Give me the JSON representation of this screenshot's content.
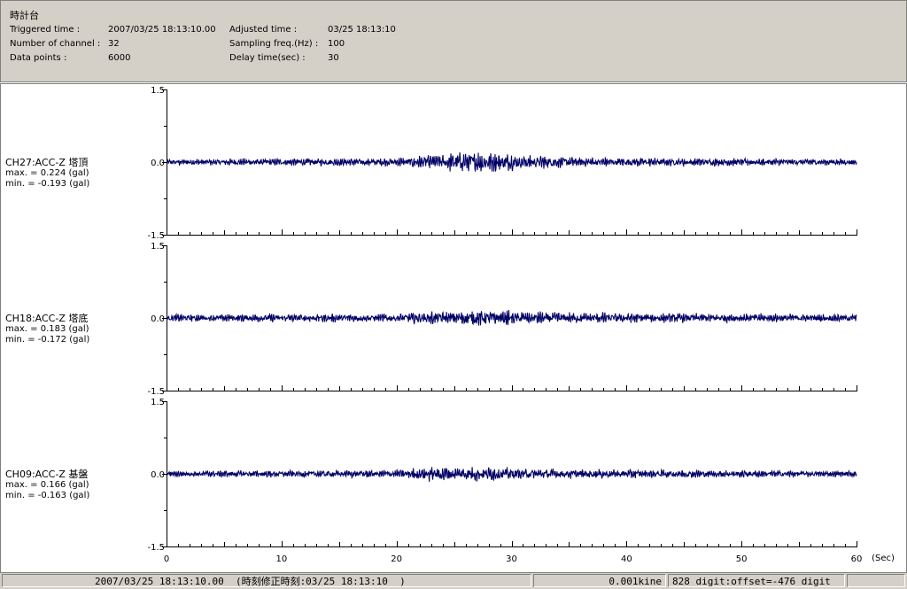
{
  "header": {
    "title": "時計台",
    "triggered_label": "Triggered time :",
    "triggered_value": "2007/03/25 18:13:10.00",
    "channels_label": "Number of channel :",
    "channels_value": "32",
    "points_label": "Data points :",
    "points_value": "6000",
    "adjusted_label": "Adjusted time :",
    "adjusted_value": "03/25 18:13:10",
    "sampling_label": "Sampling freq.(Hz) :",
    "sampling_value": "100",
    "delay_label": "Delay time(sec) :",
    "delay_value": "30"
  },
  "status": {
    "time": "2007/03/25 18:13:10.00  (時刻修正時刻:03/25 18:13:10  )",
    "units": "0.001kine",
    "digit": "828 digit:offset=-476 digit"
  },
  "colors": {
    "trace": "#000066",
    "background": "#ffffff",
    "panel": "#d4d0c8"
  },
  "chart_data": [
    {
      "type": "line",
      "channel": "CH27:ACC-Z 塔頂",
      "max_text": "max. = 0.224 (gal)",
      "min_text": "min. = -0.193 (gal)",
      "max": 0.224,
      "min": -0.193,
      "ylim": [
        -1.5,
        1.5
      ],
      "yticks": [
        "1.5",
        "0.0",
        "-1.5"
      ],
      "xlim": [
        0,
        60
      ],
      "activity": [
        [
          0,
          0.06
        ],
        [
          20,
          0.08
        ],
        [
          23,
          0.16
        ],
        [
          25,
          0.2
        ],
        [
          28,
          0.22
        ],
        [
          30,
          0.16
        ],
        [
          35,
          0.1
        ],
        [
          45,
          0.08
        ],
        [
          60,
          0.06
        ]
      ]
    },
    {
      "type": "line",
      "channel": "CH18:ACC-Z 塔底",
      "max_text": "max. = 0.183 (gal)",
      "min_text": "min. = -0.172 (gal)",
      "max": 0.183,
      "min": -0.172,
      "ylim": [
        -1.5,
        1.5
      ],
      "yticks": [
        "1.5",
        "0.0",
        "-1.5"
      ],
      "xlim": [
        0,
        60
      ],
      "activity": [
        [
          0,
          0.07
        ],
        [
          20,
          0.09
        ],
        [
          24,
          0.14
        ],
        [
          28,
          0.17
        ],
        [
          31,
          0.13
        ],
        [
          40,
          0.1
        ],
        [
          60,
          0.07
        ]
      ]
    },
    {
      "type": "line",
      "channel": "CH09:ACC-Z 基盤",
      "max_text": "max. = 0.166 (gal)",
      "min_text": "min. = -0.163 (gal)",
      "max": 0.166,
      "min": -0.163,
      "ylim": [
        -1.5,
        1.5
      ],
      "yticks": [
        "1.5",
        "0.0",
        "-1.5"
      ],
      "xlim": [
        0,
        60
      ],
      "activity": [
        [
          0,
          0.06
        ],
        [
          20,
          0.08
        ],
        [
          23,
          0.15
        ],
        [
          28,
          0.14
        ],
        [
          32,
          0.1
        ],
        [
          60,
          0.06
        ]
      ]
    }
  ],
  "x_axis": {
    "ticks": [
      "0",
      "10",
      "20",
      "30",
      "40",
      "50",
      "60"
    ],
    "unit": "(Sec)"
  }
}
